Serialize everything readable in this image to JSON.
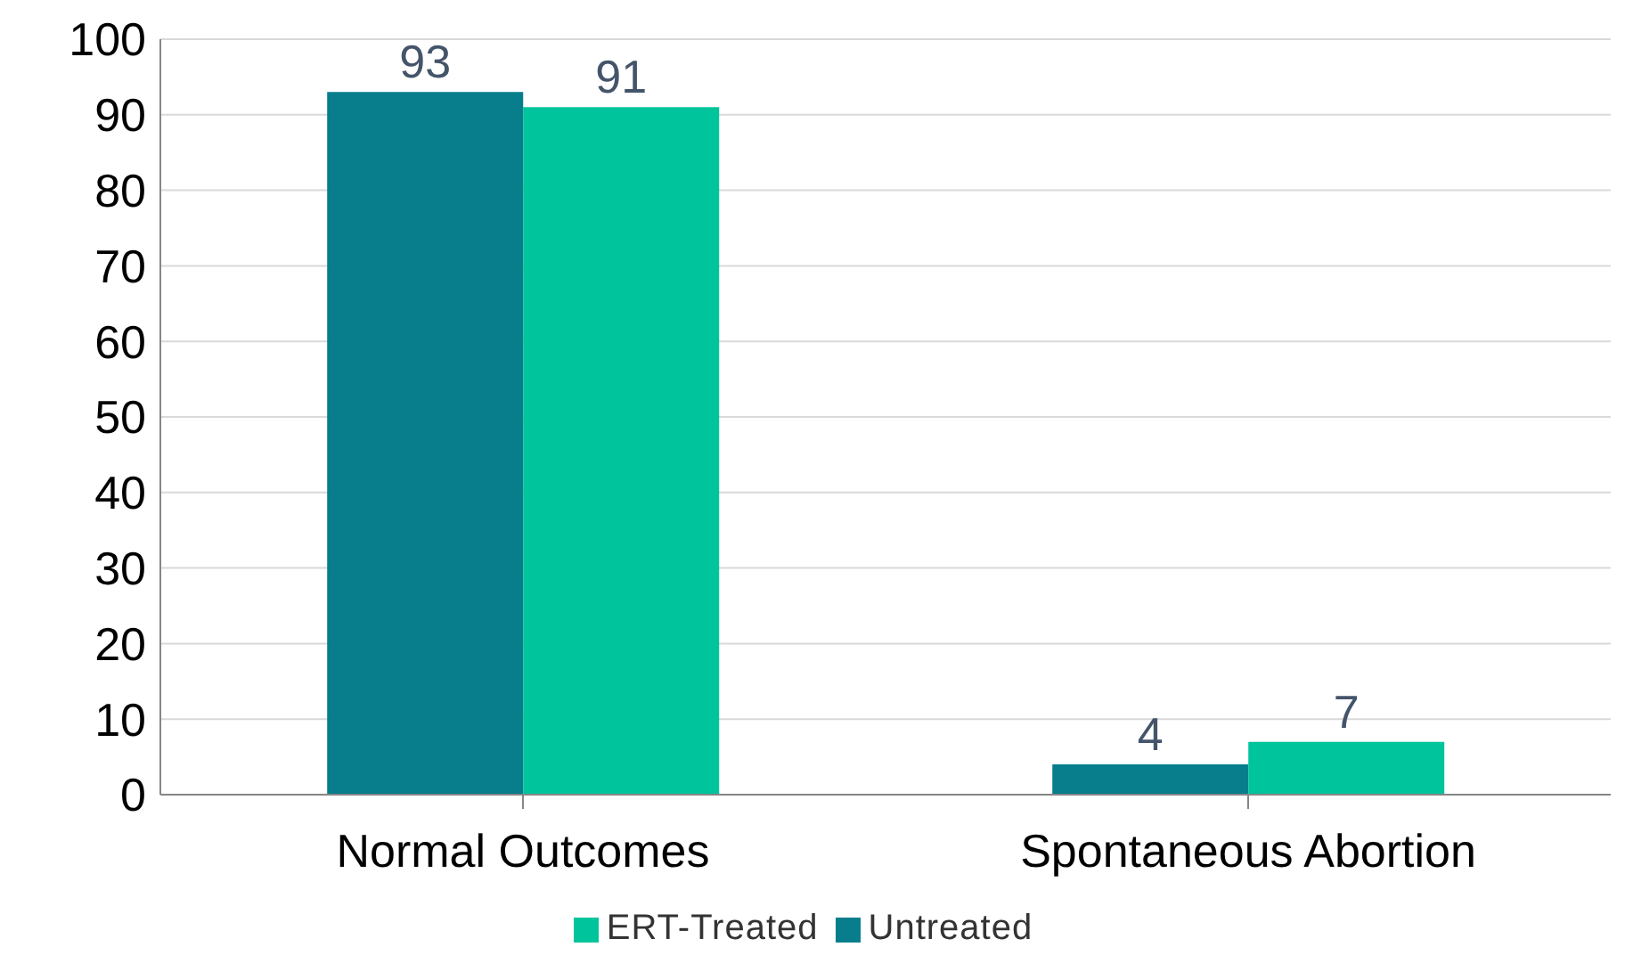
{
  "chart_data": {
    "type": "bar",
    "categories": [
      "Normal Outcomes",
      "Spontaneous Abortion"
    ],
    "series": [
      {
        "name": "Untreated",
        "color": "#087d8c",
        "values": [
          93,
          4
        ]
      },
      {
        "name": "ERT-Treated",
        "color": "#00c49b",
        "values": [
          91,
          7
        ]
      }
    ],
    "ylim": [
      0,
      100
    ],
    "yticks": [
      0,
      10,
      20,
      30,
      40,
      50,
      60,
      70,
      80,
      90,
      100
    ],
    "grid": "y",
    "legend": "bottom",
    "data_labels": true
  }
}
